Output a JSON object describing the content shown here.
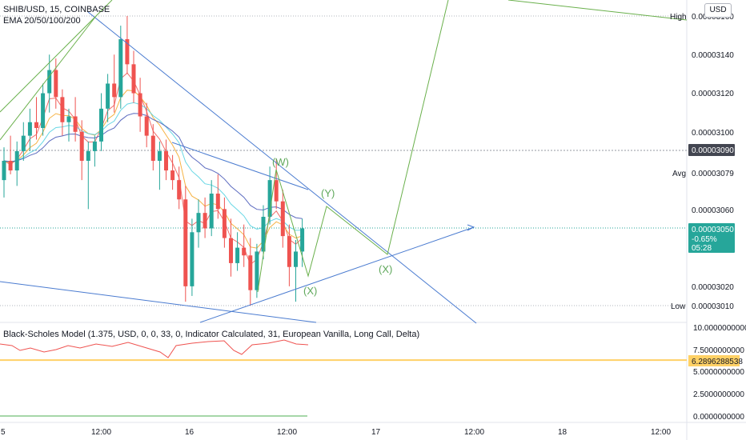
{
  "header": {
    "symbol_line": "SHIB/USD, 15, COINBASE",
    "ema_line": "EMA 20/50/100/200"
  },
  "currency_button": "USD",
  "indicator": {
    "title": "Black-Scholes Model (1.375, USD, 0, 0, 33, 0, Indicator Calculated, 31, European Vanilla, Long Call, Delta)"
  },
  "price_axis": {
    "ticks": [
      "0.00003140",
      "0.00003120",
      "0.00003100",
      "0.00003079",
      "0.00003060",
      "0.00003020"
    ],
    "high_label": "High",
    "high_value": "0.00003160",
    "avg_label": "Avg",
    "low_label": "Low",
    "low_value": "0.00003010",
    "crosshair_value": "0.00003090",
    "current_price": "0.00003050",
    "current_change": "-0.65%",
    "countdown": "05:28"
  },
  "indicator_axis": {
    "ticks": [
      "10.0000000000",
      "7.5000000000",
      "5.0000000000",
      "2.5000000000",
      "0.0000000000"
    ],
    "current_value": "6.2896288538"
  },
  "time_axis": {
    "labels": [
      "5",
      "12:00",
      "16",
      "12:00",
      "17",
      "12:00",
      "18",
      "12:00"
    ]
  },
  "wave_labels": [
    "(W)",
    "(Y)",
    "(X)",
    "(X)"
  ],
  "colors": {
    "up": "#26a69a",
    "down": "#ef5350",
    "trend_blue": "#4a7bd0",
    "projection_green": "#6ab04c",
    "badge_green": "#26a69a",
    "crosshair_badge": "#434651",
    "indicator_line": "#ef5350",
    "indicator_level": "#ffd166"
  },
  "chart_data": {
    "type": "candlestick",
    "title": "SHIB/USD, 15, COINBASE",
    "price_range": [
      3e-05,
      3.168e-05
    ],
    "candle_series": {
      "name": "SHIB/USD",
      "ohlc": [
        [
          3.075e-05,
          3.092e-05,
          3.066e-05,
          3.085e-05
        ],
        [
          3.085e-05,
          3.098e-05,
          3.078e-05,
          3.08e-05
        ],
        [
          3.08e-05,
          3.095e-05,
          3.072e-05,
          3.09e-05
        ],
        [
          3.09e-05,
          3.105e-05,
          3.085e-05,
          3.098e-05
        ],
        [
          3.098e-05,
          3.112e-05,
          3.09e-05,
          3.105e-05
        ],
        [
          3.105e-05,
          3.118e-05,
          3.096e-05,
          3.102e-05
        ],
        [
          3.102e-05,
          3.125e-05,
          3.098e-05,
          3.12e-05
        ],
        [
          3.12e-05,
          3.14e-05,
          3.11e-05,
          3.132e-05
        ],
        [
          3.132e-05,
          3.138e-05,
          3.112e-05,
          3.118e-05
        ],
        [
          3.118e-05,
          3.122e-05,
          3.098e-05,
          3.105e-05
        ],
        [
          3.105e-05,
          3.112e-05,
          3.095e-05,
          3.108e-05
        ],
        [
          3.108e-05,
          3.118e-05,
          3.095e-05,
          3.1e-05
        ],
        [
          3.1e-05,
          3.106e-05,
          3.075e-05,
          3.085e-05
        ],
        [
          3.085e-05,
          3.095e-05,
          3.06e-05,
          3.09e-05
        ],
        [
          3.09e-05,
          3.098e-05,
          3.082e-05,
          3.095e-05
        ],
        [
          3.095e-05,
          3.12e-05,
          3.09e-05,
          3.112e-05
        ],
        [
          3.112e-05,
          3.13e-05,
          3.105e-05,
          3.125e-05
        ],
        [
          3.125e-05,
          3.14e-05,
          3.11e-05,
          3.118e-05
        ],
        [
          3.118e-05,
          3.155e-05,
          3.112e-05,
          3.148e-05
        ],
        [
          3.148e-05,
          3.16e-05,
          3.13e-05,
          3.135e-05
        ],
        [
          3.135e-05,
          3.142e-05,
          3.115e-05,
          3.12e-05
        ],
        [
          3.12e-05,
          3.128e-05,
          3.1e-05,
          3.108e-05
        ],
        [
          3.108e-05,
          3.115e-05,
          3.092e-05,
          3.098e-05
        ],
        [
          3.098e-05,
          3.104e-05,
          3.08e-05,
          3.085e-05
        ],
        [
          3.085e-05,
          3.095e-05,
          3.07e-05,
          3.09e-05
        ],
        [
          3.09e-05,
          3.096e-05,
          3.075e-05,
          3.08e-05
        ],
        [
          3.08e-05,
          3.088e-05,
          3.07e-05,
          3.075e-05
        ],
        [
          3.075e-05,
          3.082e-05,
          3.06e-05,
          3.065e-05
        ],
        [
          3.065e-05,
          3.072e-05,
          3.012e-05,
          3.02e-05
        ],
        [
          3.02e-05,
          3.055e-05,
          3.015e-05,
          3.048e-05
        ],
        [
          3.048e-05,
          3.065e-05,
          3.04e-05,
          3.058e-05
        ],
        [
          3.058e-05,
          3.066e-05,
          3.045e-05,
          3.05e-05
        ],
        [
          3.05e-05,
          3.075e-05,
          3.046e-05,
          3.068e-05
        ],
        [
          3.068e-05,
          3.078e-05,
          3.055e-05,
          3.06e-05
        ],
        [
          3.06e-05,
          3.066e-05,
          3.04e-05,
          3.045e-05
        ],
        [
          3.045e-05,
          3.055e-05,
          3.025e-05,
          3.032e-05
        ],
        [
          3.032e-05,
          3.048e-05,
          3.028e-05,
          3.04e-05
        ],
        [
          3.04e-05,
          3.052e-05,
          3.03e-05,
          3.036e-05
        ],
        [
          3.036e-05,
          3.045e-05,
          3.01e-05,
          3.018e-05
        ],
        [
          3.018e-05,
          3.042e-05,
          3.014e-05,
          3.038e-05
        ],
        [
          3.038e-05,
          3.062e-05,
          3.034e-05,
          3.056e-05
        ],
        [
          3.056e-05,
          3.082e-05,
          3.052e-05,
          3.075e-05
        ],
        [
          3.075e-05,
          3.086e-05,
          3.06e-05,
          3.064e-05
        ],
        [
          3.064e-05,
          3.07e-05,
          3.04e-05,
          3.046e-05
        ],
        [
          3.046e-05,
          3.052e-05,
          3.02e-05,
          3.03e-05
        ],
        [
          3.03e-05,
          3.044e-05,
          3.012e-05,
          3.038e-05
        ],
        [
          3.038e-05,
          3.055e-05,
          3.03e-05,
          3.05e-05
        ]
      ]
    },
    "ema_series": [
      {
        "name": "EMA 20",
        "color": "#ef5350"
      },
      {
        "name": "EMA 50",
        "color": "#f5a623"
      },
      {
        "name": "EMA 100",
        "color": "#4dd0e1"
      },
      {
        "name": "EMA 200",
        "color": "#3f51b5"
      }
    ],
    "indicator_series": {
      "range": [
        0,
        10
      ],
      "level": 6.2896288538
    }
  }
}
